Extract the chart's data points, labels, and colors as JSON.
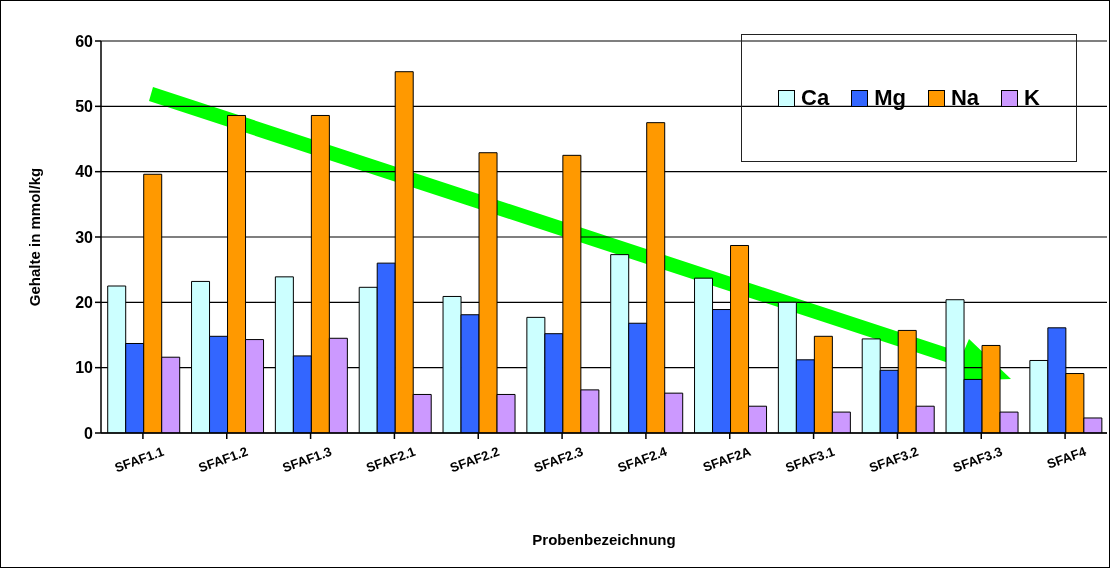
{
  "chart_data": {
    "type": "bar",
    "xlabel": "Probenbezeichnung",
    "ylabel": "Gehalte in mmol/kg",
    "categories": [
      "SFAF1.1",
      "SFAF1.2",
      "SFAF1.3",
      "SFAF2.1",
      "SFAF2.2",
      "SFAF2.3",
      "SFAF2.4",
      "SFAF2A",
      "SFAF3.1",
      "SFAF3.2",
      "SFAF3.3",
      "SFAF4"
    ],
    "series": [
      {
        "name": "Ca",
        "color": "#ccffff",
        "values": [
          22.5,
          23.2,
          23.9,
          22.3,
          20.9,
          17.7,
          27.3,
          23.7,
          20.0,
          14.4,
          20.4,
          11.1
        ]
      },
      {
        "name": "Mg",
        "color": "#3366ff",
        "values": [
          13.7,
          14.8,
          11.8,
          26.0,
          18.1,
          15.2,
          16.8,
          18.9,
          11.2,
          9.6,
          8.2,
          16.1
        ]
      },
      {
        "name": "Na",
        "color": "#ff9900",
        "values": [
          39.6,
          48.6,
          48.6,
          55.3,
          42.9,
          42.5,
          47.5,
          28.7,
          14.8,
          15.7,
          13.4,
          9.1
        ]
      },
      {
        "name": "K",
        "color": "#cc99ff",
        "values": [
          11.6,
          14.3,
          14.5,
          5.9,
          5.9,
          6.6,
          6.1,
          4.1,
          3.2,
          4.1,
          3.2,
          2.3
        ]
      }
    ],
    "ylim": [
      0,
      60
    ],
    "yticks": [
      0,
      10,
      20,
      30,
      40,
      50,
      60
    ],
    "grid": "y",
    "legend": "top right"
  }
}
